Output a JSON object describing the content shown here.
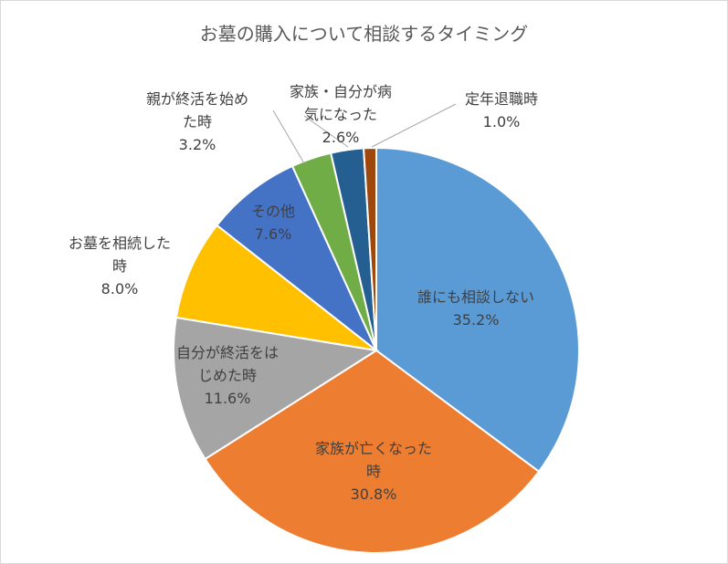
{
  "chart_data": {
    "type": "pie",
    "title": "お墓の購入について相談するタイミング",
    "categories": [
      "誰にも相談しない",
      "家族が亡くなった時",
      "自分が終活をはじめた時",
      "お墓を相続した時",
      "その他",
      "親が終活を始めた時",
      "家族・自分が病気になった",
      "定年退職時"
    ],
    "values": [
      35.2,
      30.8,
      11.6,
      8.0,
      7.6,
      3.2,
      2.6,
      1.0
    ],
    "value_labels": [
      "35.2%",
      "30.8%",
      "11.6%",
      "8.0%",
      "7.6%",
      "3.2%",
      "2.6%",
      "1.0%"
    ],
    "colors": [
      "#5b9bd5",
      "#ed7d31",
      "#a5a5a5",
      "#ffc000",
      "#4472c4",
      "#70ad47",
      "#255e91",
      "#9e480e"
    ]
  }
}
